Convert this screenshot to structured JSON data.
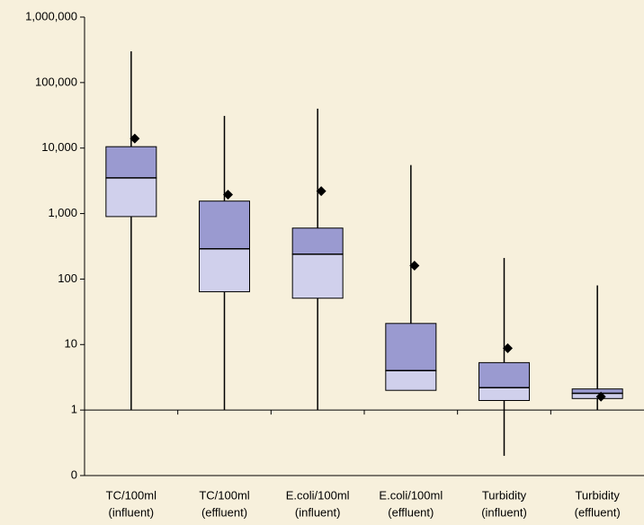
{
  "chart_data": {
    "type": "box",
    "log_scale": true,
    "categories": [
      [
        "TC/100ml",
        "(influent)"
      ],
      [
        "TC/100ml",
        "(effluent)"
      ],
      [
        "E.coli/100ml",
        "(influent)"
      ],
      [
        "E.coli/100ml",
        "(effluent)"
      ],
      [
        "Turbidity",
        "(influent)"
      ],
      [
        "Turbidity",
        "(effluent)"
      ]
    ],
    "boxes": [
      {
        "min": 1,
        "q1": 900,
        "median": 3500,
        "q3": 10500,
        "max": 300000,
        "mean": 14000
      },
      {
        "min": 1,
        "q1": 64,
        "median": 290,
        "q3": 1550,
        "max": 31000,
        "mean": 1950
      },
      {
        "min": 1,
        "q1": 51,
        "median": 240,
        "q3": 600,
        "max": 40000,
        "mean": 2200
      },
      {
        "min": 2,
        "q1": 2,
        "median": 4,
        "q3": 21,
        "max": 5500,
        "mean": 160
      },
      {
        "min": 0.2,
        "q1": 1.4,
        "median": 2.2,
        "q3": 5.3,
        "max": 210,
        "mean": 8.8
      },
      {
        "min": 1,
        "q1": 1.5,
        "median": 1.8,
        "q3": 2.1,
        "max": 80,
        "mean": 1.6
      }
    ],
    "lower_color": "#d0d0ec",
    "upper_color": "#9a9ad0",
    "mean_color": "#000000",
    "ylim": [
      0.1,
      1000000
    ],
    "yticks": [
      {
        "value": 0.1,
        "label": "0"
      },
      1,
      10,
      100,
      {
        "value": 1000,
        "label": "1,000"
      },
      {
        "value": 10000,
        "label": "10,000"
      },
      {
        "value": 100000,
        "label": "100,000"
      },
      {
        "value": 1000000,
        "label": "1,000,000"
      }
    ]
  }
}
